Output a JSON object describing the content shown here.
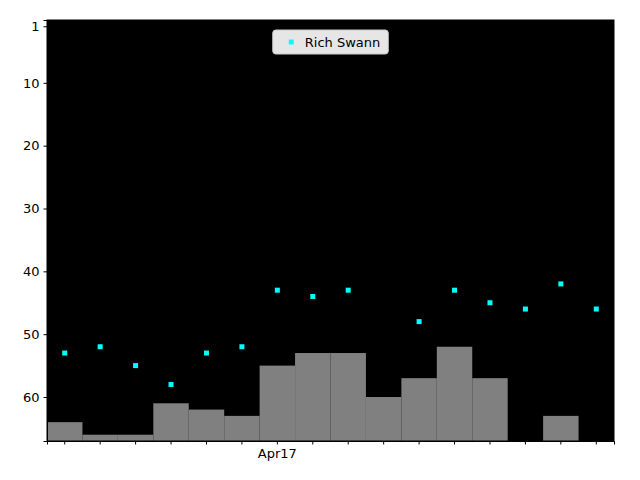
{
  "chart_data": {
    "type": "scatter",
    "categories": [
      null,
      null,
      null,
      null,
      null,
      null,
      "Apr17",
      null,
      null,
      null,
      null,
      null,
      null,
      null,
      null,
      null
    ],
    "series": [
      {
        "name": "Rich Swann",
        "type": "scatter",
        "color": "#00ffff",
        "marker": "square",
        "values": [
          53,
          52,
          55,
          58,
          53,
          52,
          43,
          44,
          43,
          null,
          48,
          43,
          45,
          46,
          42,
          46
        ]
      },
      {
        "type": "bar",
        "color": "#808080",
        "values": [
          64,
          66,
          66,
          61,
          62,
          63,
          55,
          53,
          53,
          60,
          57,
          52,
          57,
          null,
          63,
          null
        ]
      }
    ],
    "ylim": [
      67,
      0
    ],
    "yticks": [
      1,
      10,
      20,
      30,
      40,
      50,
      60
    ],
    "legend": "upper center"
  }
}
